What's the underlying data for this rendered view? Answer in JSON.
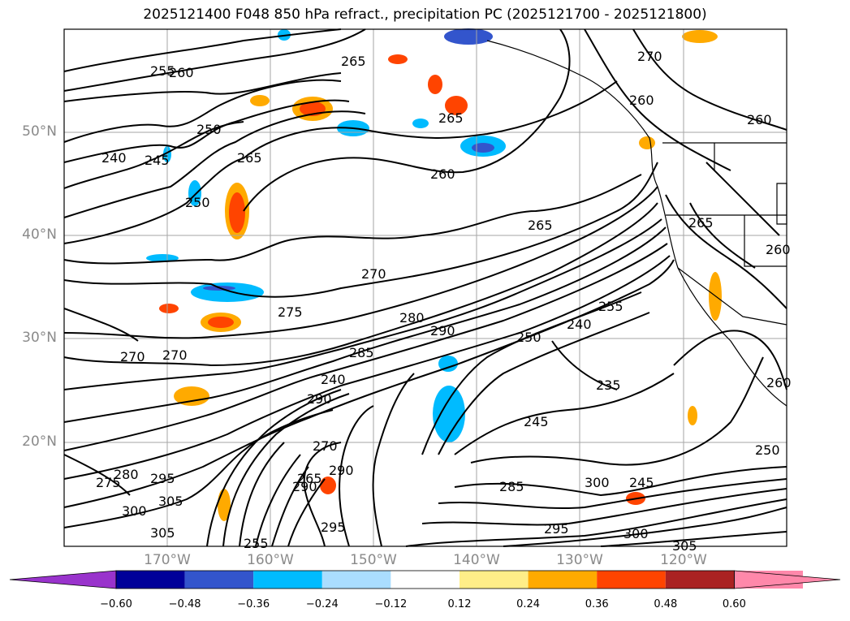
{
  "title": "2025121400 F048 850 hPa refract., precipitation PC (2025121700 - 2025121800)",
  "map": {
    "lat_labels": [
      "50°N",
      "40°N",
      "30°N",
      "20°N"
    ],
    "lon_labels": [
      "170°W",
      "160°W",
      "150°W",
      "140°W",
      "130°W",
      "120°W"
    ],
    "contour_labels": [
      "255",
      "260",
      "265",
      "270",
      "260",
      "265",
      "260",
      "260",
      "250",
      "245",
      "240",
      "265",
      "250",
      "265",
      "270",
      "275",
      "270",
      "270",
      "280",
      "285",
      "290",
      "290",
      "250",
      "240",
      "255",
      "235",
      "245",
      "245",
      "285",
      "290",
      "270",
      "265",
      "275",
      "280",
      "295",
      "300",
      "305",
      "305",
      "255",
      "295",
      "300",
      "295",
      "300",
      "305",
      "265",
      "260",
      "260",
      "250",
      "240",
      "290"
    ]
  },
  "colorbar": {
    "ticks": [
      "−0.60",
      "−0.48",
      "−0.36",
      "−0.24",
      "−0.12",
      "0.12",
      "0.24",
      "0.36",
      "0.48",
      "0.60"
    ],
    "colors": [
      "#9933cc",
      "#000099",
      "#3355cc",
      "#00bbff",
      "#aaddff",
      "#ffffff",
      "#ffee88",
      "#ffaa00",
      "#ff4400",
      "#aa2222",
      "#ff88aa",
      "#ff88aa"
    ]
  }
}
